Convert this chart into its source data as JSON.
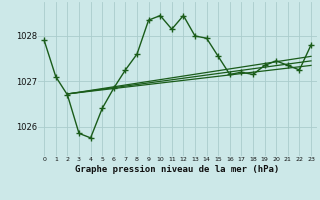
{
  "background_color": "#cce8e8",
  "grid_color": "#aacccc",
  "line_color": "#1a5c1a",
  "line_width": 1.0,
  "marker": "+",
  "marker_size": 4,
  "title": "Graphe pression niveau de la mer (hPa)",
  "ylabel_ticks": [
    1026,
    1027,
    1028
  ],
  "xlabel_ticks": [
    0,
    1,
    2,
    3,
    4,
    5,
    6,
    7,
    8,
    9,
    10,
    11,
    12,
    13,
    14,
    15,
    16,
    17,
    18,
    19,
    20,
    21,
    22,
    23
  ],
  "ylim": [
    1025.35,
    1028.75
  ],
  "xlim": [
    -0.5,
    23.5
  ],
  "main_series": {
    "x": [
      0,
      1,
      2,
      3,
      4,
      5,
      6,
      7,
      8,
      9,
      10,
      11,
      12,
      13,
      14,
      15,
      16,
      17,
      18,
      19,
      20,
      21,
      22,
      23
    ],
    "y": [
      1027.9,
      1027.1,
      1026.7,
      1025.85,
      1025.75,
      1026.4,
      1026.85,
      1027.25,
      1027.6,
      1028.35,
      1028.45,
      1028.15,
      1028.45,
      1028.0,
      1027.95,
      1027.55,
      1027.15,
      1027.2,
      1027.15,
      1027.35,
      1027.45,
      1027.35,
      1027.25,
      1027.8
    ]
  },
  "smooth_lines": [
    {
      "x": [
        2,
        23
      ],
      "y": [
        1026.72,
        1027.55
      ]
    },
    {
      "x": [
        2,
        23
      ],
      "y": [
        1026.72,
        1027.45
      ]
    },
    {
      "x": [
        2,
        23
      ],
      "y": [
        1026.72,
        1027.35
      ]
    }
  ]
}
